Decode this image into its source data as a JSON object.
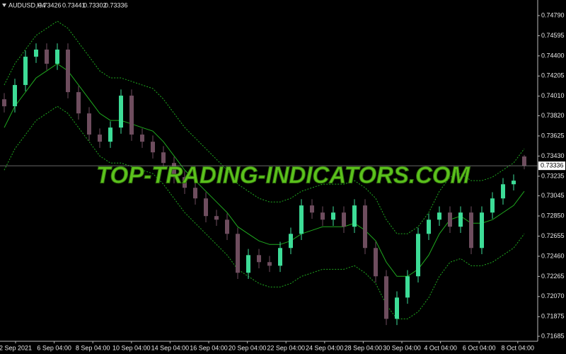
{
  "chart_data": {
    "type": "candlestick",
    "title": "AUDUSD,H4",
    "watermark": "TOP-TRADING-INDICATORS.COM",
    "categories": [
      "2 Sep 2021",
      "6 Sep 04:00",
      "8 Sep 04:00",
      "10 Sep 04:00",
      "14 Sep 04:00",
      "16 Sep 04:00",
      "20 Sep 04:00",
      "22 Sep 04:00",
      "24 Sep 04:00",
      "28 Sep 04:00",
      "30 Sep 04:00",
      "4 Oct 04:00",
      "6 Oct 04:00",
      "8 Oct 04:00"
    ],
    "open": [
      0.7398,
      0.73912,
      0.74118,
      0.74392,
      0.74461,
      0.74324,
      0.74461,
      0.74049,
      0.73843,
      0.73638,
      0.73569,
      0.73706,
      0.74015,
      0.73638,
      0.73569,
      0.73466,
      0.73363,
      0.73226,
      0.73123,
      0.7302,
      0.72849,
      0.72814,
      0.72677,
      0.723,
      0.72471,
      0.72403,
      0.72368,
      0.7254,
      0.72677,
      0.72952,
      0.72883,
      0.72814,
      0.72883,
      0.72746,
      0.72952,
      0.7254,
      0.72266,
      0.71854,
      0.7206,
      0.72266,
      0.72677,
      0.72814,
      0.72883,
      0.72746,
      0.72883,
      0.7254,
      0.72883,
      0.7302,
      0.73157,
      0.73426
    ],
    "high": [
      0.7404,
      0.74178,
      0.74452,
      0.74521,
      0.74521,
      0.74521,
      0.74521,
      0.74109,
      0.73903,
      0.73698,
      0.73766,
      0.74075,
      0.74075,
      0.73698,
      0.73629,
      0.73526,
      0.73423,
      0.73286,
      0.73183,
      0.7308,
      0.72909,
      0.72874,
      0.72737,
      0.72531,
      0.72531,
      0.72463,
      0.726,
      0.72737,
      0.73012,
      0.73012,
      0.72943,
      0.72943,
      0.72943,
      0.73012,
      0.73012,
      0.726,
      0.72326,
      0.7212,
      0.72326,
      0.72737,
      0.72874,
      0.72943,
      0.72943,
      0.72943,
      0.72943,
      0.72943,
      0.7308,
      0.73217,
      0.73252,
      0.73441
    ],
    "low": [
      0.73852,
      0.73852,
      0.74058,
      0.74332,
      0.74264,
      0.74264,
      0.73989,
      0.73783,
      0.73578,
      0.73509,
      0.73509,
      0.73646,
      0.73578,
      0.73509,
      0.73406,
      0.73303,
      0.73166,
      0.73063,
      0.7296,
      0.72789,
      0.72754,
      0.72617,
      0.7224,
      0.7224,
      0.72343,
      0.72308,
      0.72308,
      0.7248,
      0.72617,
      0.72823,
      0.72754,
      0.72754,
      0.72686,
      0.72686,
      0.7248,
      0.72206,
      0.71794,
      0.71794,
      0.72,
      0.72206,
      0.72617,
      0.72754,
      0.72686,
      0.72686,
      0.7248,
      0.7248,
      0.72823,
      0.7296,
      0.73097,
      0.73302
    ],
    "close": [
      0.73912,
      0.74118,
      0.74392,
      0.74461,
      0.74324,
      0.74461,
      0.74049,
      0.73843,
      0.73638,
      0.73569,
      0.73706,
      0.74015,
      0.73638,
      0.73569,
      0.73466,
      0.73363,
      0.73226,
      0.73123,
      0.7302,
      0.72849,
      0.72814,
      0.72677,
      0.723,
      0.72471,
      0.72403,
      0.72368,
      0.7254,
      0.72677,
      0.72952,
      0.72883,
      0.72814,
      0.72883,
      0.72746,
      0.72952,
      0.7254,
      0.72266,
      0.71854,
      0.7206,
      0.72266,
      0.72677,
      0.72814,
      0.72883,
      0.72746,
      0.72883,
      0.7254,
      0.72883,
      0.7302,
      0.73157,
      0.73192,
      0.73336
    ],
    "upper": [
      0.74118,
      0.74324,
      0.74461,
      0.74598,
      0.74667,
      0.74736,
      0.74667,
      0.7453,
      0.74393,
      0.74255,
      0.74187,
      0.74187,
      0.74153,
      0.74118,
      0.74084,
      0.73981,
      0.73844,
      0.73707,
      0.73604,
      0.73501,
      0.73398,
      0.73295,
      0.73158,
      0.73089,
      0.73021,
      0.72986,
      0.72986,
      0.73021,
      0.73089,
      0.73123,
      0.73158,
      0.73158,
      0.73158,
      0.73192,
      0.73123,
      0.73021,
      0.72815,
      0.72678,
      0.72678,
      0.72746,
      0.72883,
      0.73089,
      0.73226,
      0.73261,
      0.73192,
      0.73192,
      0.73226,
      0.73295,
      0.73364,
      0.73501
    ],
    "middle": [
      0.73706,
      0.73912,
      0.74049,
      0.74186,
      0.74255,
      0.74324,
      0.74255,
      0.74118,
      0.73981,
      0.73843,
      0.73775,
      0.73775,
      0.73741,
      0.73706,
      0.73672,
      0.73569,
      0.73432,
      0.73295,
      0.73192,
      0.73089,
      0.72986,
      0.72883,
      0.72746,
      0.72677,
      0.72609,
      0.72574,
      0.72574,
      0.72609,
      0.72677,
      0.72711,
      0.72746,
      0.72746,
      0.72746,
      0.7278,
      0.72711,
      0.72609,
      0.72403,
      0.72266,
      0.72266,
      0.72334,
      0.72471,
      0.72677,
      0.72814,
      0.72849,
      0.7278,
      0.7278,
      0.72814,
      0.72883,
      0.72952,
      0.73089
    ],
    "lower": [
      0.73294,
      0.735,
      0.73637,
      0.73774,
      0.73843,
      0.73912,
      0.73843,
      0.73706,
      0.73569,
      0.73431,
      0.73363,
      0.73363,
      0.73329,
      0.73294,
      0.7326,
      0.73157,
      0.7302,
      0.72883,
      0.7278,
      0.72677,
      0.72574,
      0.72471,
      0.72334,
      0.72265,
      0.72197,
      0.72162,
      0.72162,
      0.72197,
      0.72265,
      0.72299,
      0.72334,
      0.72334,
      0.72334,
      0.72368,
      0.72299,
      0.72197,
      0.71991,
      0.71854,
      0.71854,
      0.71922,
      0.72059,
      0.72265,
      0.72402,
      0.72437,
      0.72368,
      0.72368,
      0.72402,
      0.72471,
      0.7254,
      0.72677
    ],
    "up_color": "#3ddc97",
    "down_color": "#6e4d5e",
    "band_color": "#1faa1f",
    "watermark_color": "#5cc21c",
    "ylim": [
      0.71637,
      0.74941
    ],
    "yticks": [
      {
        "value": 0.7479,
        "label": "0.74790"
      },
      {
        "value": 0.74595,
        "label": "0.74595"
      },
      {
        "value": 0.744,
        "label": "0.74400"
      },
      {
        "value": 0.74205,
        "label": "0.74205"
      },
      {
        "value": 0.7401,
        "label": "0.74010"
      },
      {
        "value": 0.7382,
        "label": "0.73820"
      },
      {
        "value": 0.73625,
        "label": "0.73625"
      },
      {
        "value": 0.7343,
        "label": "0.73430"
      },
      {
        "value": 0.73235,
        "label": "0.73235"
      },
      {
        "value": 0.73045,
        "label": "0.73045"
      },
      {
        "value": 0.7285,
        "label": "0.72850"
      },
      {
        "value": 0.72655,
        "label": "0.72655"
      },
      {
        "value": 0.7246,
        "label": "0.72460"
      },
      {
        "value": 0.72265,
        "label": "0.72265"
      },
      {
        "value": 0.7207,
        "label": "0.72070"
      },
      {
        "value": 0.71875,
        "label": "0.71875"
      },
      {
        "value": 0.71685,
        "label": "0.71685"
      }
    ],
    "grid": false
  }
}
